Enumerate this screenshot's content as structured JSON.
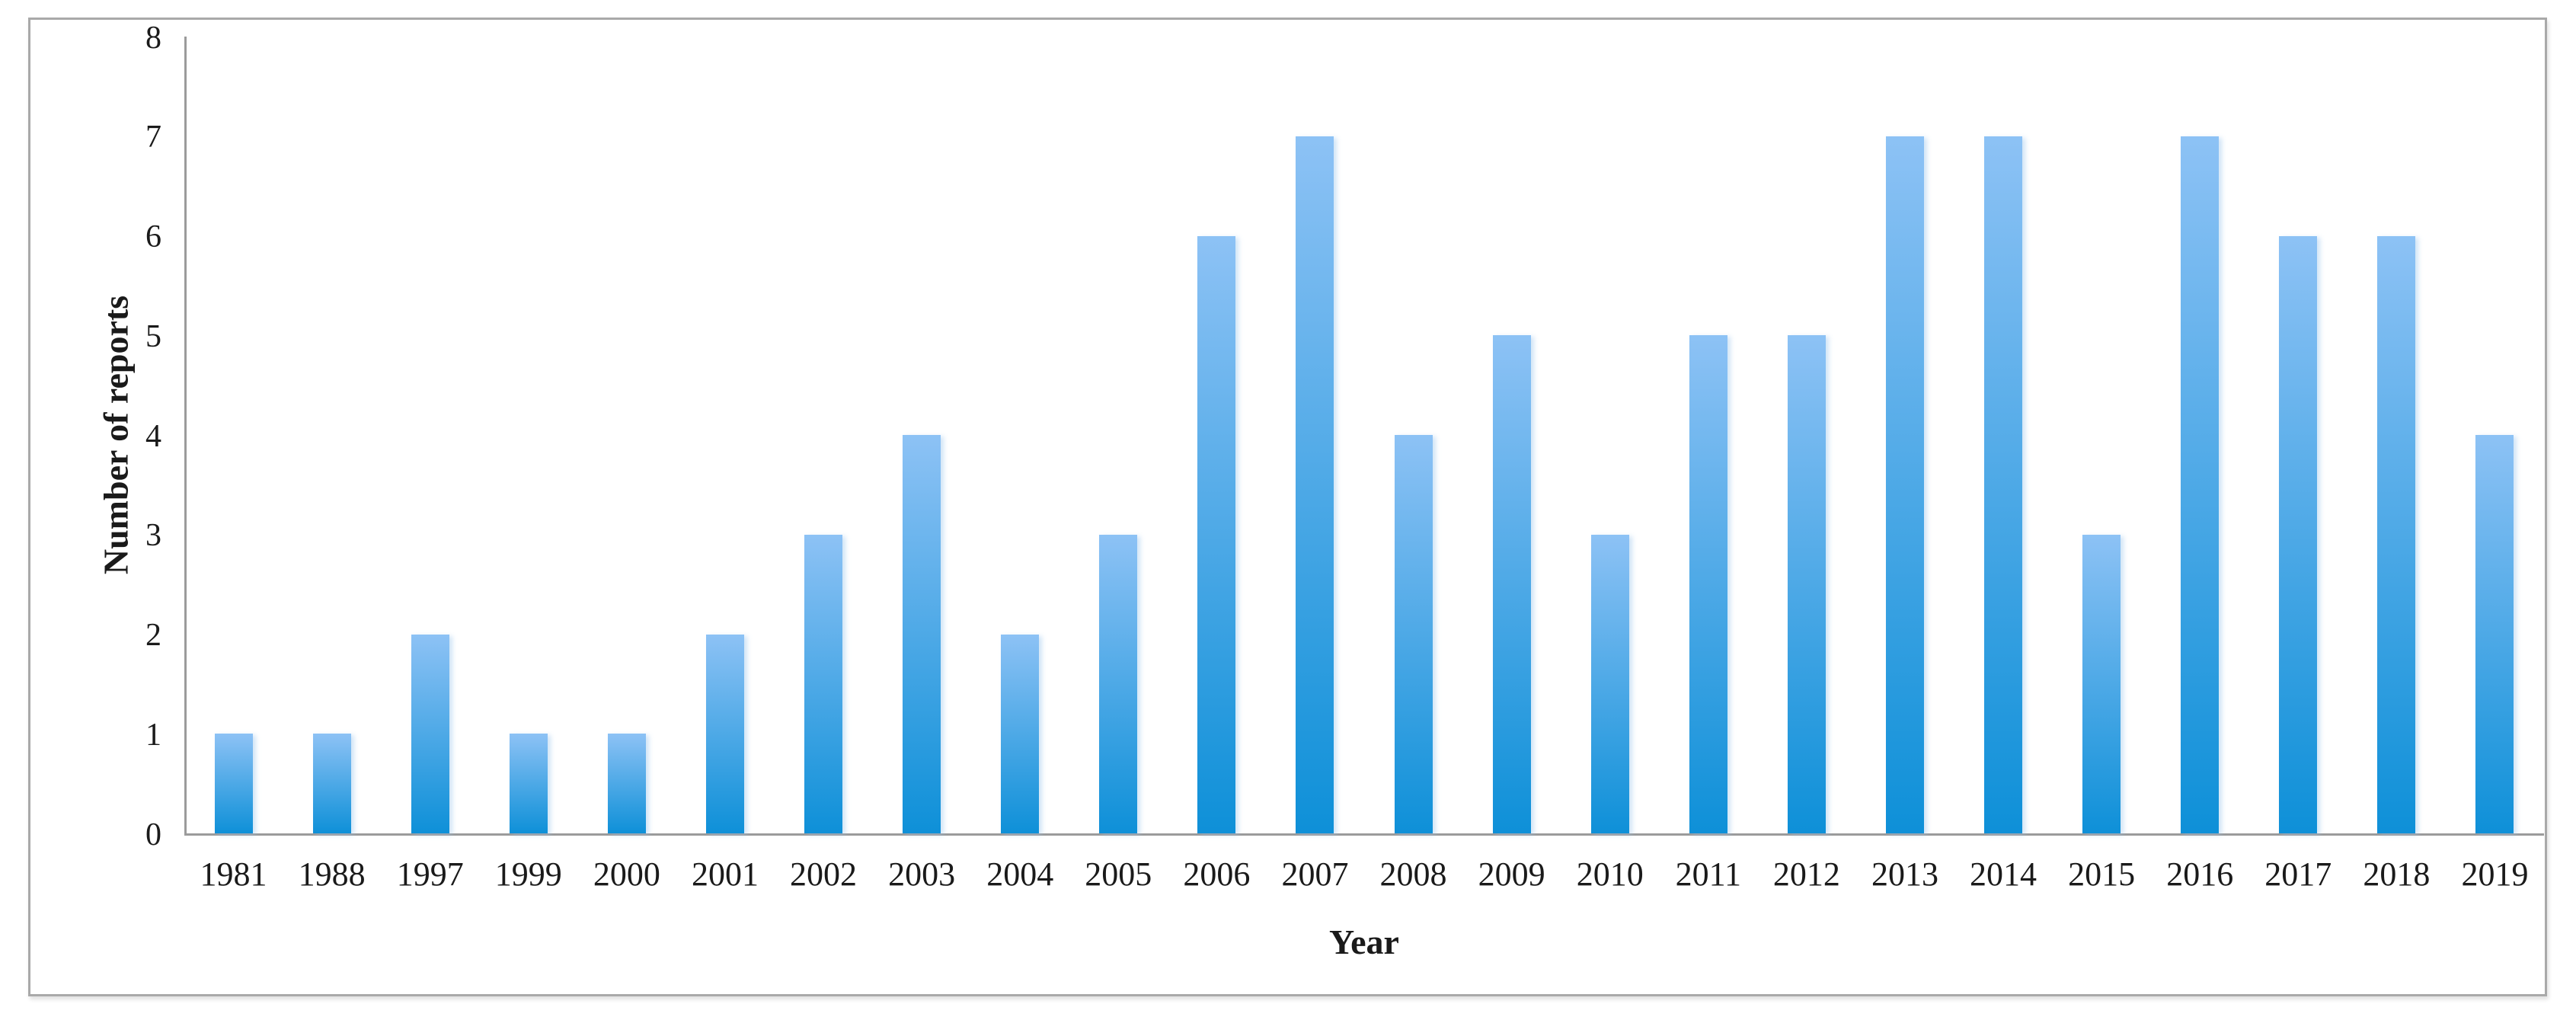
{
  "chart_data": {
    "type": "bar",
    "title": "",
    "xlabel": "Year",
    "ylabel": "Number of reports",
    "categories": [
      "1981",
      "1988",
      "1997",
      "1999",
      "2000",
      "2001",
      "2002",
      "2003",
      "2004",
      "2005",
      "2006",
      "2007",
      "2008",
      "2009",
      "2010",
      "2011",
      "2012",
      "2013",
      "2014",
      "2015",
      "2016",
      "2017",
      "2018",
      "2019"
    ],
    "values": [
      1,
      1,
      2,
      1,
      1,
      2,
      3,
      4,
      2,
      3,
      6,
      7,
      4,
      5,
      3,
      5,
      5,
      7,
      7,
      3,
      7,
      6,
      6,
      4
    ],
    "yticks": [
      0,
      1,
      2,
      3,
      4,
      5,
      6,
      7,
      8
    ],
    "ylim": [
      0,
      8
    ],
    "grid": false,
    "legend": null,
    "bar_gradient": "light blue at top to saturated blue at bottom",
    "colors": {
      "bar_top": "#8dc2f5",
      "bar_bottom": "#0e90d8",
      "axis": "#9b9b9b",
      "frame_border": "#a9a9a9"
    }
  }
}
